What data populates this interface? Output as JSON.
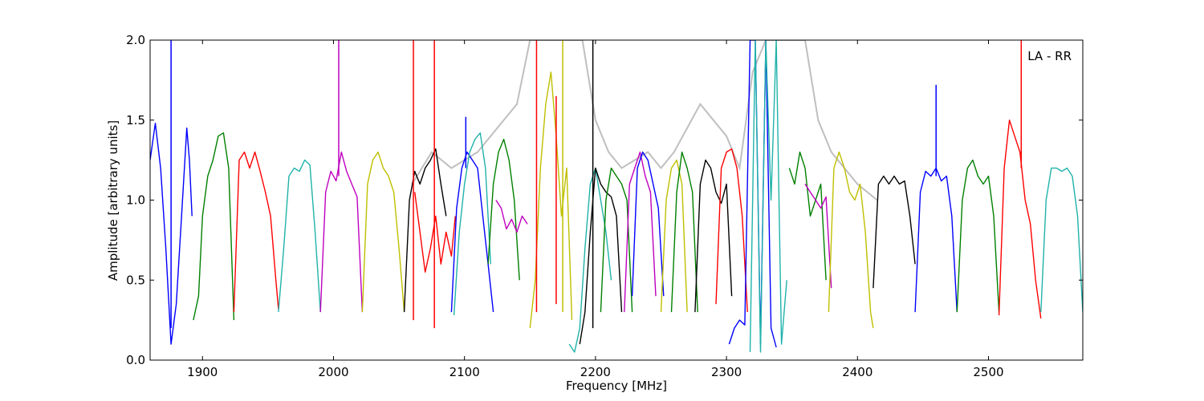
{
  "chart_data": {
    "type": "line",
    "xlabel": "Frequency [MHz]",
    "ylabel": "Amplitude [arbitrary units]",
    "annotation": "LA - RR",
    "xlim": [
      1860,
      2572
    ],
    "ylim": [
      0.0,
      2.0
    ],
    "xticks": [
      1900,
      2000,
      2100,
      2200,
      2300,
      2400,
      2500
    ],
    "xtick_labels": [
      "1900",
      "2000",
      "2100",
      "2200",
      "2300",
      "2400",
      "2500"
    ],
    "yticks": [
      0.0,
      0.5,
      1.0,
      1.5,
      2.0
    ],
    "ytick_labels": [
      "0.0",
      "0.5",
      "1.0",
      "1.5",
      "2.0"
    ],
    "grid": false,
    "colors": {
      "blue": "#0000ff",
      "green": "#008000",
      "red": "#ff0000",
      "cyan": "#20b2aa",
      "magenta": "#bf00bf",
      "olive": "#bfbf00",
      "black": "#000000",
      "background_gray": "#bfbfbf"
    },
    "background_series": {
      "color": "background_gray",
      "x": [
        2060,
        2075,
        2090,
        2110,
        2130,
        2140,
        2150,
        2160,
        2170,
        2180,
        2190,
        2200,
        2210,
        2220,
        2240,
        2250,
        2260,
        2280,
        2300,
        2310,
        2320,
        2330,
        2340,
        2350,
        2360,
        2370,
        2380,
        2400,
        2415
      ],
      "y": [
        1.1,
        1.3,
        1.2,
        1.3,
        1.5,
        1.6,
        2.0,
        2.0,
        2.0,
        2.0,
        2.0,
        1.5,
        1.3,
        1.2,
        1.3,
        1.2,
        1.3,
        1.6,
        1.4,
        1.2,
        1.8,
        2.0,
        2.0,
        2.0,
        2.0,
        1.5,
        1.3,
        1.1,
        1.0
      ]
    },
    "series": [
      {
        "color": "blue",
        "x": [
          1860,
          1864,
          1868,
          1872,
          1876,
          1880,
          1884,
          1888,
          1890,
          1892
        ],
        "y": [
          1.25,
          1.48,
          1.2,
          0.7,
          0.1,
          0.35,
          0.9,
          1.45,
          1.25,
          0.9
        ]
      },
      {
        "color": "green",
        "x": [
          1893,
          1897,
          1900,
          1904,
          1908,
          1912,
          1916,
          1920,
          1924
        ],
        "y": [
          0.25,
          0.4,
          0.9,
          1.15,
          1.25,
          1.4,
          1.42,
          1.2,
          0.25
        ]
      },
      {
        "color": "red",
        "x": [
          1924,
          1928,
          1932,
          1936,
          1940,
          1944,
          1948,
          1952,
          1956,
          1958
        ],
        "y": [
          0.3,
          1.25,
          1.3,
          1.2,
          1.3,
          1.18,
          1.05,
          0.9,
          0.5,
          0.32
        ]
      },
      {
        "color": "cyan",
        "x": [
          1958,
          1962,
          1966,
          1970,
          1974,
          1978,
          1982,
          1986,
          1990
        ],
        "y": [
          0.3,
          0.7,
          1.15,
          1.2,
          1.18,
          1.25,
          1.22,
          0.8,
          0.3
        ]
      },
      {
        "color": "magenta",
        "x": [
          1990,
          1994,
          1998,
          2002,
          2006,
          2010,
          2014,
          2018,
          2022
        ],
        "y": [
          0.3,
          1.05,
          1.18,
          1.12,
          1.3,
          1.18,
          1.1,
          1.02,
          0.3
        ]
      },
      {
        "color": "olive",
        "x": [
          2022,
          2026,
          2030,
          2034,
          2038,
          2042,
          2046,
          2050,
          2054
        ],
        "y": [
          0.3,
          1.1,
          1.25,
          1.3,
          1.2,
          1.15,
          1.05,
          0.7,
          0.3
        ]
      },
      {
        "color": "black",
        "x": [
          2054,
          2058,
          2062,
          2066,
          2070,
          2074,
          2078,
          2082,
          2086
        ],
        "y": [
          0.3,
          1.0,
          1.18,
          1.1,
          1.2,
          1.25,
          1.32,
          1.1,
          0.9
        ]
      },
      {
        "color": "red",
        "x": [
          2062,
          2066,
          2070,
          2074,
          2078,
          2082,
          2086,
          2090,
          2093
        ],
        "y": [
          1.05,
          0.8,
          0.55,
          0.7,
          0.9,
          0.6,
          0.8,
          0.65,
          0.9
        ]
      },
      {
        "color": "blue",
        "x": [
          2090,
          2094,
          2098,
          2102,
          2106,
          2110,
          2114,
          2118,
          2122
        ],
        "y": [
          0.3,
          0.95,
          1.2,
          1.3,
          1.25,
          1.2,
          0.9,
          0.6,
          0.3
        ]
      },
      {
        "color": "cyan",
        "x": [
          2092,
          2096,
          2100,
          2104,
          2108,
          2112,
          2116,
          2120
        ],
        "y": [
          0.28,
          0.8,
          1.1,
          1.3,
          1.38,
          1.42,
          1.2,
          0.6
        ]
      },
      {
        "color": "green",
        "x": [
          2118,
          2122,
          2126,
          2130,
          2134,
          2138,
          2142
        ],
        "y": [
          0.6,
          1.1,
          1.3,
          1.38,
          1.25,
          1.0,
          0.5
        ]
      },
      {
        "color": "magenta",
        "x": [
          2124,
          2128,
          2132,
          2136,
          2140,
          2144,
          2148
        ],
        "y": [
          1.0,
          0.95,
          0.82,
          0.88,
          0.8,
          0.9,
          0.85
        ]
      },
      {
        "color": "olive",
        "x": [
          2150,
          2154,
          2158,
          2162,
          2166,
          2170,
          2174,
          2178,
          2182
        ],
        "y": [
          0.2,
          0.5,
          1.2,
          1.6,
          1.8,
          1.4,
          0.9,
          1.2,
          0.25
        ]
      },
      {
        "color": "cyan",
        "x": [
          2180,
          2184,
          2188,
          2192,
          2196,
          2200,
          2204,
          2208,
          2212
        ],
        "y": [
          0.1,
          0.05,
          0.2,
          0.7,
          1.1,
          1.2,
          1.0,
          0.8,
          0.5
        ]
      },
      {
        "color": "black",
        "x": [
          2188,
          2192,
          2196,
          2200,
          2204,
          2208,
          2212,
          2216,
          2220
        ],
        "y": [
          0.1,
          0.3,
          0.8,
          1.2,
          1.1,
          1.05,
          1.02,
          0.9,
          0.3
        ]
      },
      {
        "color": "green",
        "x": [
          2204,
          2208,
          2212,
          2216,
          2220,
          2224,
          2228
        ],
        "y": [
          0.3,
          1.0,
          1.2,
          1.15,
          1.1,
          1.0,
          0.3
        ]
      },
      {
        "color": "magenta",
        "x": [
          2222,
          2226,
          2230,
          2234,
          2238,
          2242,
          2246
        ],
        "y": [
          0.3,
          1.1,
          1.2,
          1.3,
          1.15,
          1.05,
          0.4
        ]
      },
      {
        "color": "blue",
        "x": [
          2228,
          2232,
          2236,
          2240,
          2244,
          2248,
          2252
        ],
        "y": [
          0.4,
          1.2,
          1.3,
          1.25,
          1.1,
          0.95,
          0.4
        ]
      },
      {
        "color": "olive",
        "x": [
          2250,
          2254,
          2258,
          2262,
          2266,
          2270
        ],
        "y": [
          0.3,
          1.0,
          1.2,
          1.25,
          1.1,
          0.3
        ]
      },
      {
        "color": "green",
        "x": [
          2258,
          2262,
          2266,
          2270,
          2274,
          2278
        ],
        "y": [
          0.3,
          1.05,
          1.3,
          1.2,
          1.05,
          0.3
        ]
      },
      {
        "color": "black",
        "x": [
          2276,
          2280,
          2284,
          2288,
          2292,
          2296,
          2300,
          2304
        ],
        "y": [
          0.3,
          1.1,
          1.25,
          1.2,
          1.05,
          0.98,
          1.1,
          0.4
        ]
      },
      {
        "color": "red",
        "x": [
          2292,
          2296,
          2300,
          2304,
          2308,
          2312,
          2316
        ],
        "y": [
          0.35,
          1.2,
          1.3,
          1.32,
          1.2,
          0.9,
          0.3
        ]
      },
      {
        "color": "blue",
        "x": [
          2302,
          2306,
          2310,
          2314,
          2318,
          2322,
          2326,
          2330,
          2334,
          2338
        ],
        "y": [
          0.1,
          0.2,
          0.25,
          0.22,
          2.0,
          2.0,
          0.1,
          2.0,
          0.2,
          0.08
        ]
      },
      {
        "color": "cyan",
        "x": [
          2318,
          2322,
          2326,
          2330,
          2334,
          2338,
          2342,
          2346
        ],
        "y": [
          0.05,
          2.0,
          0.05,
          2.0,
          1.0,
          2.0,
          0.1,
          0.5
        ]
      },
      {
        "color": "green",
        "x": [
          2348,
          2352,
          2356,
          2360,
          2364,
          2368,
          2372,
          2376
        ],
        "y": [
          1.2,
          1.1,
          1.3,
          1.2,
          0.9,
          1.0,
          1.1,
          0.5
        ]
      },
      {
        "color": "magenta",
        "x": [
          2360,
          2364,
          2368,
          2372,
          2376,
          2380
        ],
        "y": [
          1.1,
          1.05,
          1.0,
          0.95,
          1.02,
          0.45
        ]
      },
      {
        "color": "olive",
        "x": [
          2378,
          2382,
          2386,
          2390,
          2394,
          2398,
          2402,
          2406,
          2410,
          2412
        ],
        "y": [
          0.3,
          1.2,
          1.3,
          1.2,
          1.05,
          1.0,
          1.1,
          0.8,
          0.3,
          0.2
        ]
      },
      {
        "color": "black",
        "x": [
          2412,
          2416,
          2420,
          2424,
          2428,
          2432,
          2436,
          2440,
          2444
        ],
        "y": [
          0.45,
          1.1,
          1.15,
          1.1,
          1.15,
          1.1,
          1.12,
          0.9,
          0.6
        ]
      },
      {
        "color": "blue",
        "x": [
          2444,
          2448,
          2452,
          2456,
          2460,
          2464,
          2468,
          2472,
          2476
        ],
        "y": [
          0.3,
          1.05,
          1.18,
          1.15,
          1.2,
          1.12,
          1.15,
          0.9,
          0.3
        ]
      },
      {
        "color": "green",
        "x": [
          2476,
          2480,
          2484,
          2488,
          2492,
          2496,
          2500,
          2504,
          2508
        ],
        "y": [
          0.3,
          1.0,
          1.2,
          1.25,
          1.15,
          1.1,
          1.15,
          0.9,
          0.3
        ]
      },
      {
        "color": "red",
        "x": [
          2508,
          2512,
          2516,
          2520,
          2524,
          2528,
          2532,
          2536,
          2540
        ],
        "y": [
          0.28,
          1.2,
          1.5,
          1.4,
          1.3,
          1.0,
          0.85,
          0.5,
          0.26
        ]
      },
      {
        "color": "cyan",
        "x": [
          2540,
          2544,
          2548,
          2552,
          2556,
          2560,
          2564,
          2568,
          2572
        ],
        "y": [
          0.3,
          1.0,
          1.2,
          1.2,
          1.18,
          1.2,
          1.15,
          0.9,
          0.3
        ]
      }
    ],
    "spikes": [
      {
        "color": "blue",
        "x": 1876,
        "y0": 0.2,
        "y1": 2.0
      },
      {
        "color": "magenta",
        "x": 2004,
        "y0": 1.15,
        "y1": 2.0
      },
      {
        "color": "red",
        "x": 2061,
        "y0": 0.25,
        "y1": 2.0
      },
      {
        "color": "red",
        "x": 2077,
        "y0": 0.2,
        "y1": 2.0
      },
      {
        "color": "blue",
        "x": 2101,
        "y0": 1.2,
        "y1": 1.52
      },
      {
        "color": "red",
        "x": 2155,
        "y0": 0.3,
        "y1": 2.0
      },
      {
        "color": "red",
        "x": 2170,
        "y0": 0.35,
        "y1": 1.65
      },
      {
        "color": "olive",
        "x": 2175,
        "y0": 0.3,
        "y1": 2.0
      },
      {
        "color": "black",
        "x": 2198,
        "y0": 0.2,
        "y1": 2.0
      },
      {
        "color": "blue",
        "x": 2460,
        "y0": 1.15,
        "y1": 1.72
      },
      {
        "color": "red",
        "x": 2525,
        "y0": 1.2,
        "y1": 2.0
      }
    ]
  }
}
